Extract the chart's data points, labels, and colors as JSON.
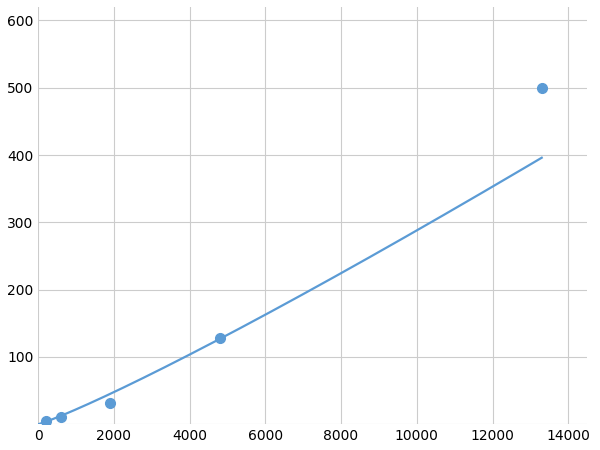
{
  "x": [
    200,
    600,
    1900,
    4800,
    13300
  ],
  "y": [
    5,
    10,
    32,
    128,
    500
  ],
  "line_color": "#5B9BD5",
  "marker_color": "#5B9BD5",
  "marker_size": 7,
  "line_width": 1.6,
  "xlim": [
    0,
    14500
  ],
  "ylim": [
    0,
    620
  ],
  "xticks": [
    0,
    2000,
    4000,
    6000,
    8000,
    10000,
    12000,
    14000
  ],
  "yticks": [
    0,
    100,
    200,
    300,
    400,
    500,
    600
  ],
  "grid_color": "#CCCCCC",
  "bg_color": "#FFFFFF",
  "tick_fontsize": 10
}
